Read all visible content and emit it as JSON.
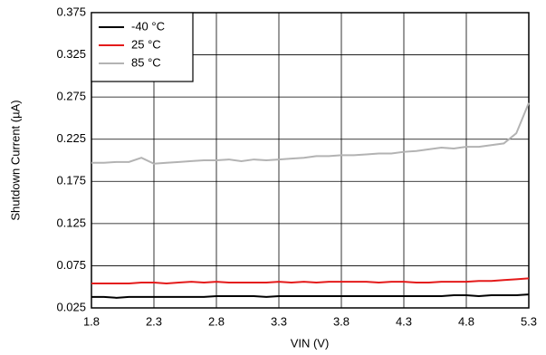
{
  "chart_data": {
    "type": "line",
    "xlabel": "VIN (V)",
    "ylabel": "Shutdown Current (µA)",
    "x": [
      1.8,
      1.9,
      2.0,
      2.1,
      2.2,
      2.3,
      2.4,
      2.5,
      2.6,
      2.7,
      2.8,
      2.9,
      3.0,
      3.1,
      3.2,
      3.3,
      3.4,
      3.5,
      3.6,
      3.7,
      3.8,
      3.9,
      4.0,
      4.1,
      4.2,
      4.3,
      4.4,
      4.5,
      4.6,
      4.7,
      4.8,
      4.9,
      5.0,
      5.1,
      5.2,
      5.3
    ],
    "series": [
      {
        "name": "-40 °C",
        "color": "#000000",
        "values": [
          0.038,
          0.038,
          0.037,
          0.038,
          0.038,
          0.038,
          0.038,
          0.038,
          0.038,
          0.038,
          0.039,
          0.039,
          0.039,
          0.039,
          0.038,
          0.039,
          0.039,
          0.039,
          0.039,
          0.039,
          0.039,
          0.039,
          0.039,
          0.039,
          0.039,
          0.039,
          0.039,
          0.039,
          0.039,
          0.04,
          0.04,
          0.039,
          0.04,
          0.04,
          0.04,
          0.041
        ]
      },
      {
        "name": "25 °C",
        "color": "#e41a1a",
        "values": [
          0.054,
          0.054,
          0.054,
          0.054,
          0.055,
          0.055,
          0.054,
          0.055,
          0.056,
          0.055,
          0.056,
          0.055,
          0.055,
          0.055,
          0.055,
          0.056,
          0.055,
          0.056,
          0.055,
          0.056,
          0.056,
          0.056,
          0.056,
          0.055,
          0.056,
          0.056,
          0.055,
          0.055,
          0.056,
          0.056,
          0.056,
          0.057,
          0.057,
          0.058,
          0.059,
          0.06
        ]
      },
      {
        "name": "85 °C",
        "color": "#b3b3b3",
        "values": [
          0.197,
          0.197,
          0.198,
          0.198,
          0.203,
          0.196,
          0.197,
          0.198,
          0.199,
          0.2,
          0.2,
          0.201,
          0.199,
          0.201,
          0.2,
          0.201,
          0.202,
          0.203,
          0.205,
          0.205,
          0.206,
          0.206,
          0.207,
          0.208,
          0.208,
          0.21,
          0.211,
          0.213,
          0.215,
          0.214,
          0.216,
          0.216,
          0.218,
          0.22,
          0.232,
          0.268
        ]
      }
    ],
    "xlim": [
      1.8,
      5.3
    ],
    "xticks": [
      1.8,
      2.3,
      2.8,
      3.3,
      3.8,
      4.3,
      4.8,
      5.3
    ],
    "ylim": [
      0.025,
      0.375
    ],
    "yticks": [
      0.025,
      0.075,
      0.125,
      0.175,
      0.225,
      0.275,
      0.325,
      0.375
    ],
    "grid": true,
    "legend": "upper left"
  }
}
